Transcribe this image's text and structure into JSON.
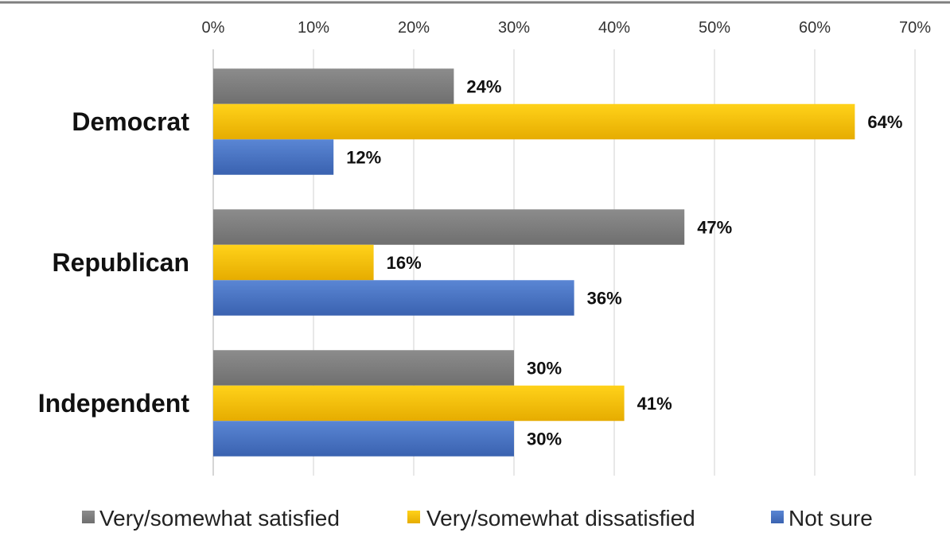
{
  "chart_data": {
    "type": "bar",
    "orientation": "horizontal",
    "categories": [
      "Democrat",
      "Republican",
      "Independent"
    ],
    "series": [
      {
        "name": "Very/somewhat satisfied",
        "values": [
          24,
          47,
          30
        ],
        "color": "#7f7f7f"
      },
      {
        "name": "Very/somewhat dissatisfied",
        "values": [
          64,
          16,
          41
        ],
        "color": "#ffc000"
      },
      {
        "name": "Not sure",
        "values": [
          12,
          36,
          30
        ],
        "color": "#4472c4"
      }
    ],
    "data_labels": [
      [
        "24%",
        "47%",
        "30%"
      ],
      [
        "64%",
        "16%",
        "41%"
      ],
      [
        "12%",
        "36%",
        "30%"
      ]
    ],
    "xlim": [
      0,
      70
    ],
    "x_ticks": [
      0,
      10,
      20,
      30,
      40,
      50,
      60,
      70
    ],
    "x_tick_labels": [
      "0%",
      "10%",
      "20%",
      "30%",
      "40%",
      "50%",
      "60%",
      "70%"
    ],
    "x_axis_position": "top",
    "grid": true,
    "legend_position": "bottom"
  }
}
